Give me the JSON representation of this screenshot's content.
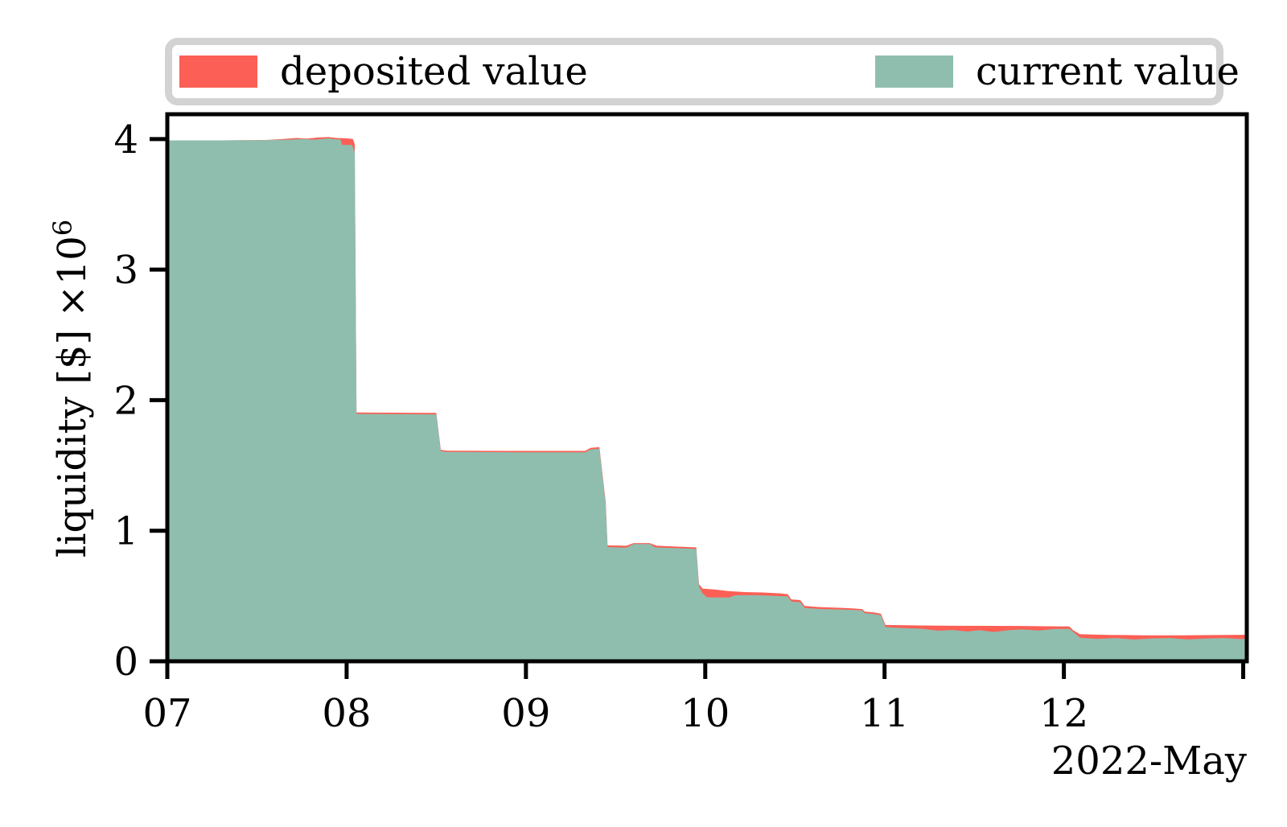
{
  "accent_colors": {
    "deposited": "#fc5f55",
    "current": "#8fbeae",
    "legend_border": "#d3d3d3",
    "axis": "#000000"
  },
  "legend": {
    "items": [
      {
        "label": "deposited value",
        "color": "#fc5f55"
      },
      {
        "label": "current value",
        "color": "#8fbeae"
      }
    ]
  },
  "chart_data": {
    "type": "area",
    "title": "",
    "xlabel": "2022-May",
    "ylabel": "liquidity [$] ×10⁶",
    "ylabel_base": "liquidity [$] ×10",
    "ylabel_exponent": "6",
    "x_unit": "day of May 2022",
    "xlim": [
      7,
      13.02
    ],
    "ylim": [
      0,
      4.19
    ],
    "grid": false,
    "legend_position": "top",
    "x_ticks": [
      {
        "value": 7,
        "label": "07"
      },
      {
        "value": 8,
        "label": "08"
      },
      {
        "value": 9,
        "label": "09"
      },
      {
        "value": 10,
        "label": "10"
      },
      {
        "value": 11,
        "label": "11"
      },
      {
        "value": 12,
        "label": "12"
      },
      {
        "value": 13,
        "label": ""
      }
    ],
    "y_ticks": [
      {
        "value": 0,
        "label": "0"
      },
      {
        "value": 1,
        "label": "1"
      },
      {
        "value": 2,
        "label": "2"
      },
      {
        "value": 3,
        "label": "3"
      },
      {
        "value": 4,
        "label": "4"
      }
    ],
    "series": [
      {
        "name": "deposited value",
        "color": "#fc5f55",
        "points": [
          [
            7.0,
            3.99
          ],
          [
            7.3,
            3.99
          ],
          [
            7.55,
            3.993
          ],
          [
            7.65,
            4.0
          ],
          [
            7.72,
            4.008
          ],
          [
            7.78,
            4.003
          ],
          [
            7.84,
            4.012
          ],
          [
            7.9,
            4.015
          ],
          [
            7.94,
            4.008
          ],
          [
            8.0,
            4.005
          ],
          [
            8.035,
            4.0
          ],
          [
            8.045,
            3.96
          ],
          [
            8.055,
            1.906
          ],
          [
            8.3,
            1.904
          ],
          [
            8.5,
            1.902
          ],
          [
            8.525,
            1.62
          ],
          [
            8.56,
            1.613
          ],
          [
            9.0,
            1.611
          ],
          [
            9.33,
            1.611
          ],
          [
            9.36,
            1.635
          ],
          [
            9.41,
            1.64
          ],
          [
            9.445,
            1.22
          ],
          [
            9.455,
            0.888
          ],
          [
            9.56,
            0.885
          ],
          [
            9.6,
            0.905
          ],
          [
            9.69,
            0.905
          ],
          [
            9.73,
            0.885
          ],
          [
            9.85,
            0.878
          ],
          [
            9.93,
            0.874
          ],
          [
            9.95,
            0.872
          ],
          [
            9.965,
            0.59
          ],
          [
            9.985,
            0.557
          ],
          [
            10.05,
            0.55
          ],
          [
            10.13,
            0.538
          ],
          [
            10.22,
            0.53
          ],
          [
            10.32,
            0.527
          ],
          [
            10.42,
            0.52
          ],
          [
            10.46,
            0.514
          ],
          [
            10.48,
            0.474
          ],
          [
            10.53,
            0.468
          ],
          [
            10.555,
            0.424
          ],
          [
            10.65,
            0.414
          ],
          [
            10.75,
            0.41
          ],
          [
            10.83,
            0.404
          ],
          [
            10.875,
            0.4
          ],
          [
            10.89,
            0.38
          ],
          [
            10.94,
            0.374
          ],
          [
            10.98,
            0.364
          ],
          [
            11.005,
            0.278
          ],
          [
            11.2,
            0.274
          ],
          [
            11.4,
            0.272
          ],
          [
            11.6,
            0.271
          ],
          [
            11.8,
            0.27
          ],
          [
            12.03,
            0.266
          ],
          [
            12.05,
            0.24
          ],
          [
            12.09,
            0.207
          ],
          [
            12.25,
            0.202
          ],
          [
            12.45,
            0.199
          ],
          [
            12.65,
            0.199
          ],
          [
            12.85,
            0.201
          ],
          [
            13.02,
            0.203
          ]
        ]
      },
      {
        "name": "current value",
        "color": "#8fbeae",
        "points": [
          [
            7.0,
            3.99
          ],
          [
            7.3,
            3.99
          ],
          [
            7.55,
            3.992
          ],
          [
            7.68,
            3.995
          ],
          [
            7.76,
            4.0
          ],
          [
            7.82,
            3.995
          ],
          [
            7.86,
            4.0
          ],
          [
            7.9,
            4.005
          ],
          [
            7.94,
            3.998
          ],
          [
            7.965,
            3.998
          ],
          [
            7.975,
            3.955
          ],
          [
            8.03,
            3.955
          ],
          [
            8.045,
            3.9
          ],
          [
            8.055,
            1.895
          ],
          [
            8.3,
            1.893
          ],
          [
            8.5,
            1.891
          ],
          [
            8.525,
            1.61
          ],
          [
            8.56,
            1.603
          ],
          [
            9.0,
            1.601
          ],
          [
            9.33,
            1.601
          ],
          [
            9.36,
            1.622
          ],
          [
            9.41,
            1.628
          ],
          [
            9.445,
            1.2
          ],
          [
            9.455,
            0.875
          ],
          [
            9.56,
            0.87
          ],
          [
            9.6,
            0.898
          ],
          [
            9.69,
            0.898
          ],
          [
            9.72,
            0.872
          ],
          [
            9.85,
            0.866
          ],
          [
            9.93,
            0.862
          ],
          [
            9.95,
            0.858
          ],
          [
            9.965,
            0.57
          ],
          [
            9.985,
            0.52
          ],
          [
            10.01,
            0.49
          ],
          [
            10.13,
            0.488
          ],
          [
            10.17,
            0.506
          ],
          [
            10.3,
            0.506
          ],
          [
            10.4,
            0.5
          ],
          [
            10.46,
            0.497
          ],
          [
            10.48,
            0.458
          ],
          [
            10.53,
            0.452
          ],
          [
            10.555,
            0.408
          ],
          [
            10.65,
            0.4
          ],
          [
            10.75,
            0.397
          ],
          [
            10.83,
            0.393
          ],
          [
            10.875,
            0.39
          ],
          [
            10.89,
            0.368
          ],
          [
            10.94,
            0.362
          ],
          [
            10.98,
            0.352
          ],
          [
            11.005,
            0.262
          ],
          [
            11.1,
            0.254
          ],
          [
            11.2,
            0.25
          ],
          [
            11.3,
            0.234
          ],
          [
            11.38,
            0.24
          ],
          [
            11.46,
            0.228
          ],
          [
            11.53,
            0.238
          ],
          [
            11.61,
            0.224
          ],
          [
            11.69,
            0.238
          ],
          [
            11.77,
            0.244
          ],
          [
            11.86,
            0.236
          ],
          [
            11.95,
            0.248
          ],
          [
            12.03,
            0.248
          ],
          [
            12.05,
            0.228
          ],
          [
            12.09,
            0.18
          ],
          [
            12.19,
            0.172
          ],
          [
            12.29,
            0.178
          ],
          [
            12.39,
            0.167
          ],
          [
            12.49,
            0.175
          ],
          [
            12.59,
            0.178
          ],
          [
            12.69,
            0.168
          ],
          [
            12.79,
            0.174
          ],
          [
            12.89,
            0.178
          ],
          [
            12.99,
            0.17
          ],
          [
            13.02,
            0.174
          ]
        ]
      }
    ]
  }
}
